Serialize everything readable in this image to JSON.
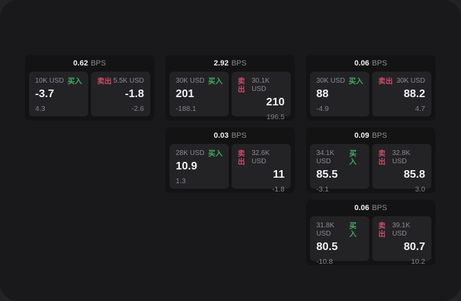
{
  "labels": {
    "buy": "买入",
    "sell": "卖出",
    "bps_unit": "BPS"
  },
  "colors": {
    "buy_green": "#42ab5e",
    "sell_red": "#cd4b69",
    "window_background": "#19191b",
    "card_background": "#131314",
    "panel_background": "#232326",
    "text_primary": "#f2f2f2",
    "text_muted": "#8c8c91"
  },
  "cards": [
    {
      "row": 0,
      "col": 0,
      "bps": "0.62",
      "buy": {
        "amount": "10K USD",
        "value": "-3.7",
        "sub": "4.3"
      },
      "sell": {
        "amount": "5.5K USD",
        "value": "-1.8",
        "sub": "-2.6"
      }
    },
    {
      "row": 0,
      "col": 1,
      "bps": "2.92",
      "buy": {
        "amount": "30K USD",
        "value": "201",
        "sub": "-188.1"
      },
      "sell": {
        "amount": "30.1K USD",
        "value": "210",
        "sub": "196.5"
      }
    },
    {
      "row": 0,
      "col": 2,
      "bps": "0.06",
      "buy": {
        "amount": "30K USD",
        "value": "88",
        "sub": "-4.9"
      },
      "sell": {
        "amount": "30K USD",
        "value": "88.2",
        "sub": "4.7"
      }
    },
    {
      "row": 1,
      "col": 1,
      "bps": "0.03",
      "buy": {
        "amount": "28K USD",
        "value": "10.9",
        "sub": "1.3"
      },
      "sell": {
        "amount": "32.6K USD",
        "value": "11",
        "sub": "-1.8"
      }
    },
    {
      "row": 1,
      "col": 2,
      "bps": "0.09",
      "buy": {
        "amount": "34.1K USD",
        "value": "85.5",
        "sub": "-3.1"
      },
      "sell": {
        "amount": "32.8K USD",
        "value": "85.8",
        "sub": "3.0"
      }
    },
    {
      "row": 2,
      "col": 2,
      "bps": "0.06",
      "buy": {
        "amount": "31.8K USD",
        "value": "80.5",
        "sub": "-10.8"
      },
      "sell": {
        "amount": "39.1K USD",
        "value": "80.7",
        "sub": "10.2"
      }
    }
  ]
}
